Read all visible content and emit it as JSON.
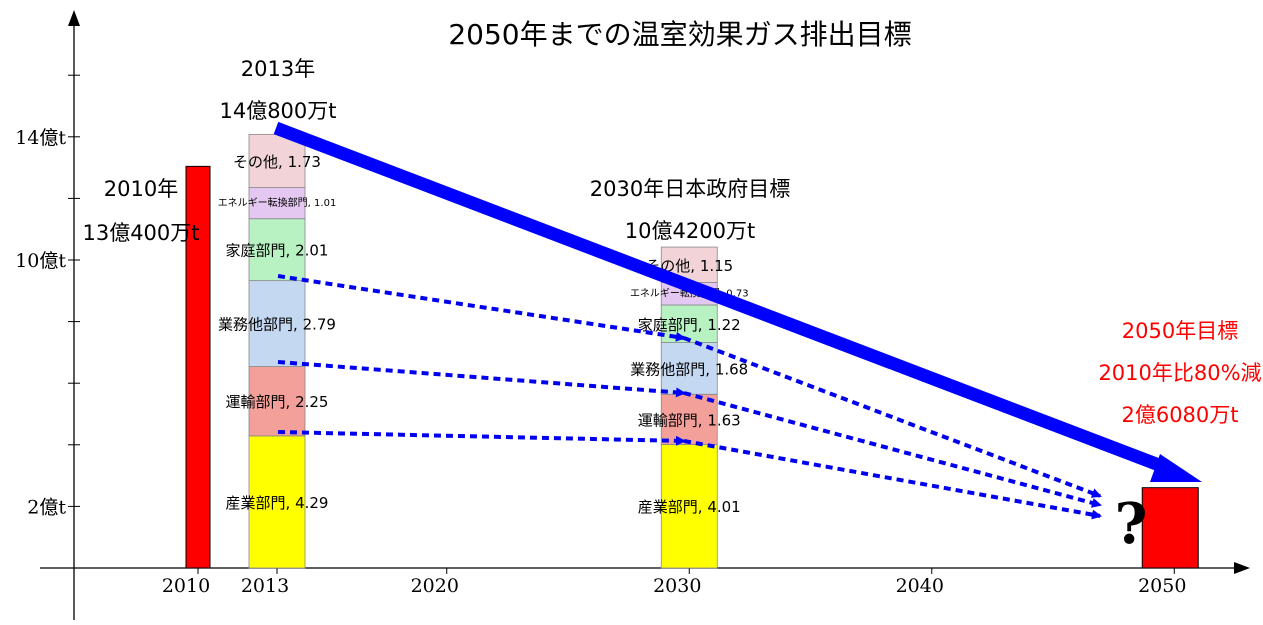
{
  "chart_data": {
    "type": "bar",
    "title": "2050年までの温室効果ガス排出目標",
    "unit": "億t",
    "x_ticks": [
      "2010",
      "2013",
      "2020",
      "2030",
      "2040",
      "2050"
    ],
    "y_ticks": [
      {
        "value": 2,
        "label": "2億t"
      },
      {
        "value": 10,
        "label": "10億t"
      },
      {
        "value": 14,
        "label": "14億t"
      }
    ],
    "ylim": [
      0,
      18
    ],
    "grid": false,
    "bars": [
      {
        "year": 2010,
        "total": 13.04,
        "color": "#ff0000",
        "annotation": [
          "2010年",
          "13億400万t"
        ],
        "segments": []
      },
      {
        "year": 2013,
        "total": 14.08,
        "annotation": [
          "2013年",
          "14億800万t"
        ],
        "segments": [
          {
            "name": "産業部門",
            "value": 4.29,
            "label": "4.29",
            "color": "#ffff00"
          },
          {
            "name": "運輸部門",
            "value": 2.25,
            "label": "2.25",
            "color": "#f4a09a"
          },
          {
            "name": "業務他部門",
            "value": 2.79,
            "label": "2.79",
            "color": "#c4d8f2"
          },
          {
            "name": "家庭部門",
            "value": 2.01,
            "label": "2.01",
            "color": "#b8f2c2"
          },
          {
            "name": "エネルギー転換部門",
            "value": 1.01,
            "label": "1.01",
            "color": "#e5c8f2"
          },
          {
            "name": "その他",
            "value": 1.73,
            "label": "1.73",
            "color": "#f2d4d8"
          }
        ]
      },
      {
        "year": 2030,
        "total": 10.42,
        "annotation": [
          "2030年日本政府目標",
          "10億4200万t"
        ],
        "segments": [
          {
            "name": "産業部門",
            "value": 4.01,
            "label": "4.01",
            "color": "#ffff00"
          },
          {
            "name": "運輸部門",
            "value": 1.63,
            "label": "1.63",
            "color": "#f4a09a"
          },
          {
            "name": "業務他部門",
            "value": 1.68,
            "label": "1.68",
            "color": "#c4d8f2"
          },
          {
            "name": "家庭部門",
            "value": 1.22,
            "label": "1.22",
            "color": "#b8f2c2"
          },
          {
            "name": "エネルギー転換部門",
            "value": 0.73,
            "label": "0.73",
            "color": "#e5c8f2"
          },
          {
            "name": "その他",
            "value": 1.15,
            "label": "1.15",
            "color": "#f2d4d8"
          }
        ]
      },
      {
        "year": 2050,
        "total": 2.608,
        "color": "#ff0000",
        "annotation": [
          "2050年目標",
          "2010年比80%減",
          "2億6080万t"
        ],
        "annotation_color": "#ff0000",
        "segments": []
      }
    ],
    "unknown_mark": "?"
  }
}
